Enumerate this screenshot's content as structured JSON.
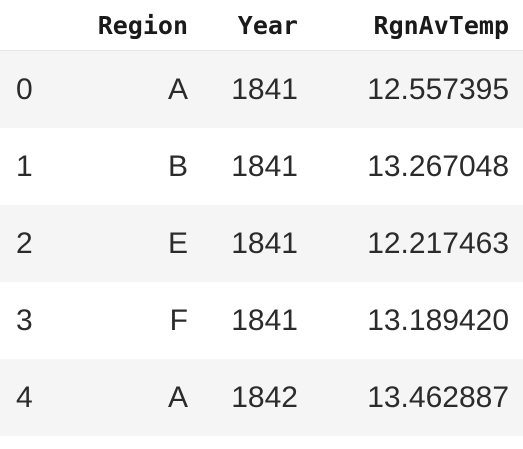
{
  "table": {
    "columns": [
      "",
      "Region",
      "Year",
      "RgnAvTemp"
    ],
    "rows": [
      [
        "0",
        "A",
        "1841",
        "12.557395"
      ],
      [
        "1",
        "B",
        "1841",
        "13.267048"
      ],
      [
        "2",
        "E",
        "1841",
        "12.217463"
      ],
      [
        "3",
        "F",
        "1841",
        "13.189420"
      ],
      [
        "4",
        "A",
        "1842",
        "13.462887"
      ]
    ]
  }
}
